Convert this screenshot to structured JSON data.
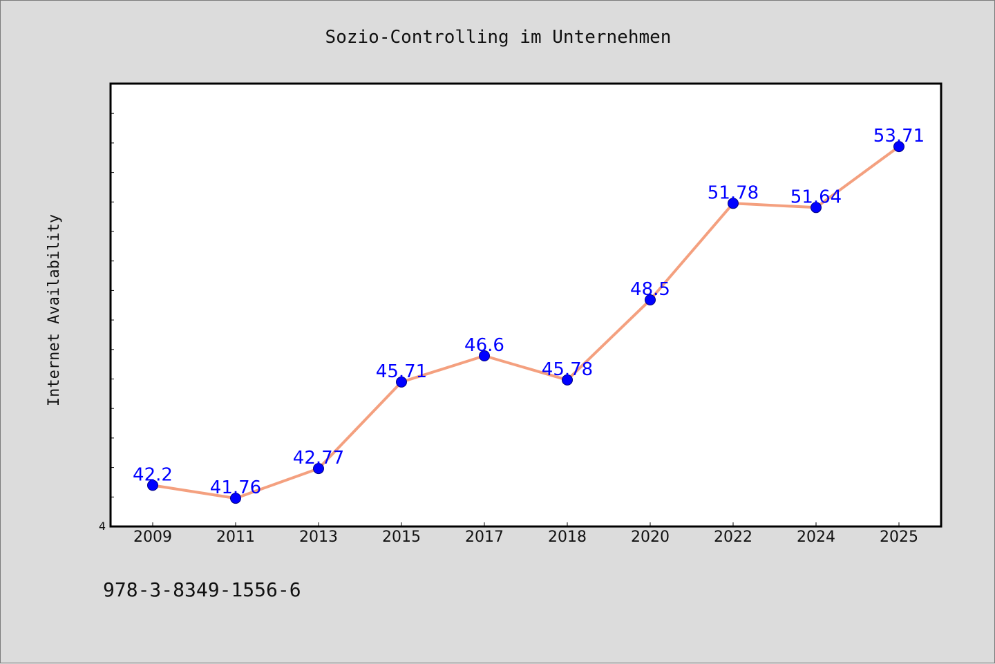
{
  "chart_data": {
    "type": "line",
    "title": "Sozio-Controlling im Unternehmen",
    "xlabel": "",
    "ylabel": "Internet Availability",
    "categories": [
      "2009",
      "2011",
      "2013",
      "2015",
      "2017",
      "2018",
      "2020",
      "2022",
      "2024",
      "2025"
    ],
    "series": [
      {
        "values": [
          42.2,
          41.76,
          42.77,
          45.71,
          46.6,
          45.78,
          48.5,
          51.78,
          51.64,
          53.71
        ]
      }
    ],
    "data_labels": [
      "42.2",
      "41.76",
      "42.77",
      "45.71",
      "46.6",
      "45.78",
      "48.5",
      "51.78",
      "51.64",
      "53.71"
    ],
    "ylim": [
      40.8,
      55.85
    ],
    "y_min_label": "4",
    "grid": false,
    "colors": {
      "line": "#f4a07f",
      "marker": "#0000ff",
      "label": "#0000ff",
      "background": "#dcdcdc",
      "plot_background": "#ffffff"
    }
  },
  "footer": {
    "isbn": "978-3-8349-1556-6"
  }
}
